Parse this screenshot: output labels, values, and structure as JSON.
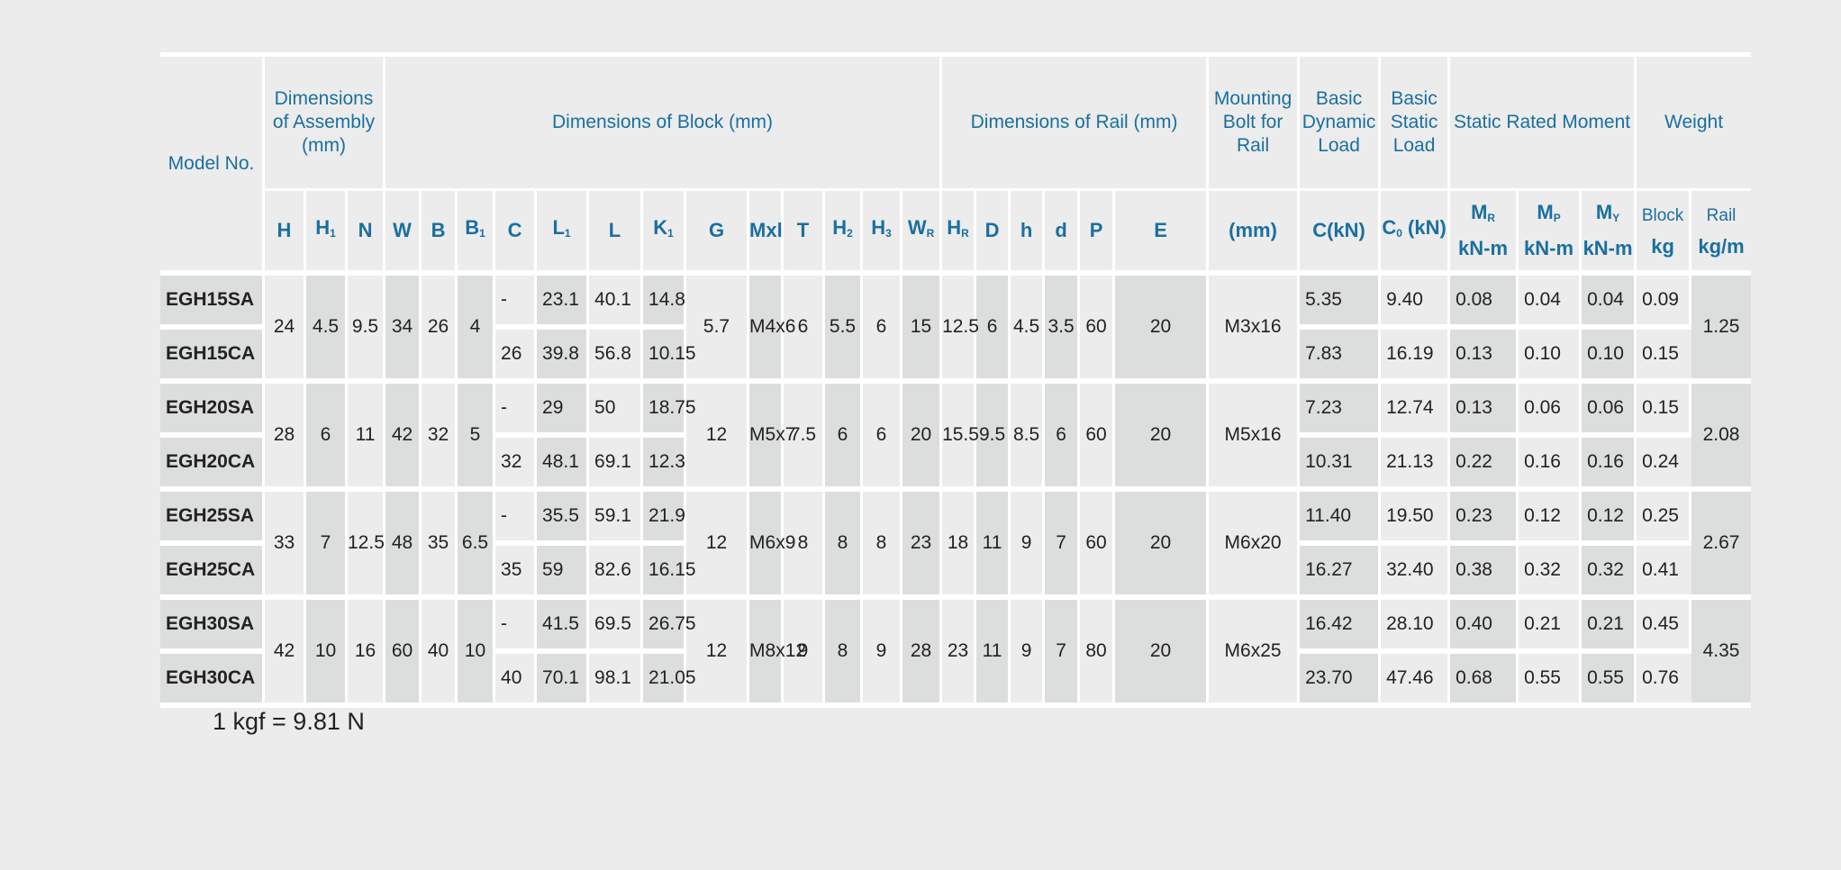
{
  "header": {
    "model": "Model No.",
    "assembly": "Dimensions of Assembly (mm)",
    "block": "Dimensions of Block (mm)",
    "rail": "Dimensions of Rail (mm)",
    "bolt": "Mounting Bolt for Rail",
    "dyn": "Basic Dynamic Load",
    "stat": "Basic Static Load",
    "moment": "Static Rated Moment",
    "weight": "Weight",
    "mr": "M",
    "mr_sub": "R",
    "mp": "M",
    "mp_sub": "P",
    "my": "M",
    "my_sub": "Y",
    "block_w": "Block",
    "rail_w": "Rail",
    "unit_knm": "kN-m",
    "unit_kg": "kg",
    "unit_kgm": "kg/m",
    "sym": {
      "H": "H",
      "H1": "H",
      "H1s": "1",
      "N": "N",
      "W": "W",
      "B": "B",
      "B1": "B",
      "B1s": "1",
      "C": "C",
      "L1": "L",
      "L1s": "1",
      "L": "L",
      "K1": "K",
      "K1s": "1",
      "G": "G",
      "Mxl": "Mxl",
      "T": "T",
      "H2": "H",
      "H2s": "2",
      "H3": "H",
      "H3s": "3",
      "WR": "W",
      "WRs": "R",
      "HR": "H",
      "HRs": "R",
      "D": "D",
      "h": "h",
      "d": "d",
      "P": "P",
      "E": "E",
      "mm": "(mm)",
      "C_kN": "C(kN)",
      "C0": "C",
      "C0s": "0",
      "C0u": "(kN)"
    }
  },
  "rows": [
    {
      "sa": {
        "model": "EGH15SA",
        "C": "-",
        "L1": "23.1",
        "L": "40.1",
        "K1": "14.8",
        "dyn": "5.35",
        "stat": "9.40",
        "mr": "0.08",
        "mp": "0.04",
        "my": "0.04",
        "blk": "0.09"
      },
      "ca": {
        "model": "EGH15CA",
        "C": "26",
        "L1": "39.8",
        "L": "56.8",
        "K1": "10.15",
        "dyn": "7.83",
        "stat": "16.19",
        "mr": "0.13",
        "mp": "0.10",
        "my": "0.10",
        "blk": "0.15"
      },
      "H": "24",
      "H1": "4.5",
      "N": "9.5",
      "W": "34",
      "B": "26",
      "B1": "4",
      "G": "5.7",
      "Mxl": "M4x6",
      "T": "6",
      "H2": "5.5",
      "H3": "6",
      "WR": "15",
      "HR": "12.5",
      "D": "6",
      "h": "4.5",
      "d": "3.5",
      "P": "60",
      "E": "20",
      "bolt": "M3x16",
      "rail": "1.25"
    },
    {
      "sa": {
        "model": "EGH20SA",
        "C": "-",
        "L1": "29",
        "L": "50",
        "K1": "18.75",
        "dyn": "7.23",
        "stat": "12.74",
        "mr": "0.13",
        "mp": "0.06",
        "my": "0.06",
        "blk": "0.15"
      },
      "ca": {
        "model": "EGH20CA",
        "C": "32",
        "L1": "48.1",
        "L": "69.1",
        "K1": "12.3",
        "dyn": "10.31",
        "stat": "21.13",
        "mr": "0.22",
        "mp": "0.16",
        "my": "0.16",
        "blk": "0.24"
      },
      "H": "28",
      "H1": "6",
      "N": "11",
      "W": "42",
      "B": "32",
      "B1": "5",
      "G": "12",
      "Mxl": "M5x7",
      "T": "7.5",
      "H2": "6",
      "H3": "6",
      "WR": "20",
      "HR": "15.5",
      "D": "9.5",
      "h": "8.5",
      "d": "6",
      "P": "60",
      "E": "20",
      "bolt": "M5x16",
      "rail": "2.08"
    },
    {
      "sa": {
        "model": "EGH25SA",
        "C": "-",
        "L1": "35.5",
        "L": "59.1",
        "K1": "21.9",
        "dyn": "11.40",
        "stat": "19.50",
        "mr": "0.23",
        "mp": "0.12",
        "my": "0.12",
        "blk": "0.25"
      },
      "ca": {
        "model": "EGH25CA",
        "C": "35",
        "L1": "59",
        "L": "82.6",
        "K1": "16.15",
        "dyn": "16.27",
        "stat": "32.40",
        "mr": "0.38",
        "mp": "0.32",
        "my": "0.32",
        "blk": "0.41"
      },
      "H": "33",
      "H1": "7",
      "N": "12.5",
      "W": "48",
      "B": "35",
      "B1": "6.5",
      "G": "12",
      "Mxl": "M6x9",
      "T": "8",
      "H2": "8",
      "H3": "8",
      "WR": "23",
      "HR": "18",
      "D": "11",
      "h": "9",
      "d": "7",
      "P": "60",
      "E": "20",
      "bolt": "M6x20",
      "rail": "2.67"
    },
    {
      "sa": {
        "model": "EGH30SA",
        "C": "-",
        "L1": "41.5",
        "L": "69.5",
        "K1": "26.75",
        "dyn": "16.42",
        "stat": "28.10",
        "mr": "0.40",
        "mp": "0.21",
        "my": "0.21",
        "blk": "0.45"
      },
      "ca": {
        "model": "EGH30CA",
        "C": "40",
        "L1": "70.1",
        "L": "98.1",
        "K1": "21.05",
        "dyn": "23.70",
        "stat": "47.46",
        "mr": "0.68",
        "mp": "0.55",
        "my": "0.55",
        "blk": "0.76"
      },
      "H": "42",
      "H1": "10",
      "N": "16",
      "W": "60",
      "B": "40",
      "B1": "10",
      "G": "12",
      "Mxl": "M8x12",
      "T": "9",
      "H2": "8",
      "H3": "9",
      "WR": "28",
      "HR": "23",
      "D": "11",
      "h": "9",
      "d": "7",
      "P": "80",
      "E": "20",
      "bolt": "M6x25",
      "rail": "4.35"
    }
  ],
  "note": "1 kgf = 9.81 N",
  "colors": {
    "header_text": "#1a6fa0",
    "shade": "#dcdddd",
    "background": "#ececec"
  }
}
